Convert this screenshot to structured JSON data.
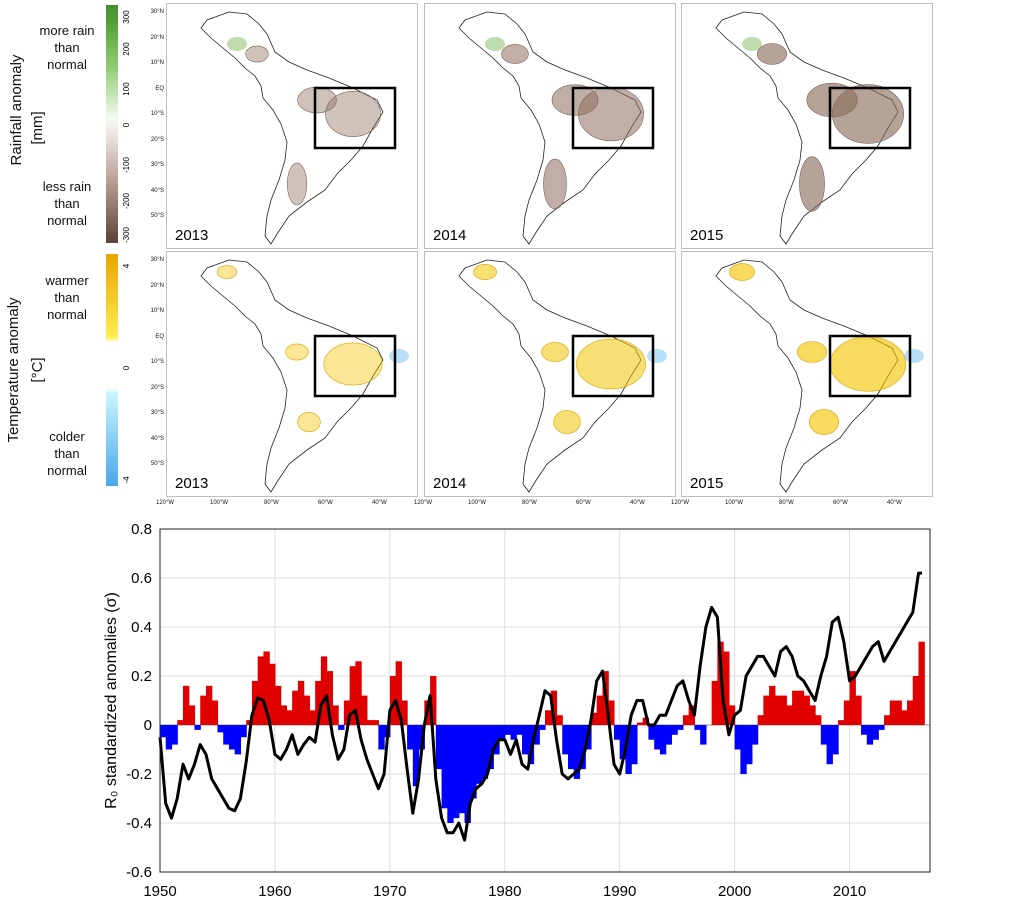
{
  "maps": {
    "rain_label": "Rainfall anomaly",
    "rain_unit": "[mm]",
    "rain_legend_top": [
      "more rain",
      "than",
      "normal"
    ],
    "rain_legend_bottom": [
      "less rain",
      "than",
      "normal"
    ],
    "rain_ticks": [
      "300",
      "200",
      "100",
      "0",
      "-100",
      "-200",
      "-300"
    ],
    "temp_label": "Temperature anomaly",
    "temp_unit": "[°C]",
    "temp_legend_top": [
      "warmer",
      "than",
      "normal"
    ],
    "temp_legend_bottom": [
      "colder",
      "than",
      "normal"
    ],
    "temp_ticks": [
      "4",
      "0",
      "-4"
    ],
    "years": [
      "2013",
      "2014",
      "2015"
    ],
    "lat_ticks": [
      "30°N",
      "20°N",
      "10°N",
      "EQ",
      "10°S",
      "20°S",
      "30°S",
      "40°S",
      "50°S"
    ],
    "lon_ticks": [
      "120°W",
      "100°W",
      "80°W",
      "60°W",
      "40°W"
    ],
    "colors": {
      "rain_wet": "#6fb24a",
      "rain_dry": "#8c6d5c",
      "temp_warm": "#f2c400",
      "temp_cold": "#5fb7f0"
    }
  },
  "chart_data": {
    "type": "bar",
    "title": "",
    "xlabel": "",
    "ylabel": "R₀ standardized anomalies (σ)",
    "xlim": [
      1950,
      2017
    ],
    "ylim": [
      -0.6,
      0.8
    ],
    "xticks": [
      1950,
      1960,
      1970,
      1980,
      1990,
      2000,
      2010
    ],
    "yticks": [
      -0.6,
      -0.4,
      -0.2,
      0,
      0.2,
      0.4,
      0.6,
      0.8
    ],
    "grid": true,
    "colors": {
      "positive": "#e00000",
      "negative": "#0000ff",
      "line": "#000000"
    },
    "series": [
      {
        "type": "bar",
        "x": [
          1950.0,
          1950.5,
          1951.0,
          1951.5,
          1952.0,
          1952.5,
          1953.0,
          1953.5,
          1954.0,
          1954.5,
          1955.0,
          1955.5,
          1956.0,
          1956.5,
          1957.0,
          1957.5,
          1958.0,
          1958.5,
          1959.0,
          1959.5,
          1960.0,
          1960.5,
          1961.0,
          1961.5,
          1962.0,
          1962.5,
          1963.0,
          1963.5,
          1964.0,
          1964.5,
          1965.0,
          1965.5,
          1966.0,
          1966.5,
          1967.0,
          1967.5,
          1968.0,
          1968.5,
          1969.0,
          1969.5,
          1970.0,
          1970.5,
          1971.0,
          1971.5,
          1972.0,
          1972.5,
          1973.0,
          1973.5,
          1974.0,
          1974.5,
          1975.0,
          1975.5,
          1976.0,
          1976.5,
          1977.0,
          1977.5,
          1978.0,
          1978.5,
          1979.0,
          1979.5,
          1980.0,
          1980.5,
          1981.0,
          1981.5,
          1982.0,
          1982.5,
          1983.0,
          1983.5,
          1984.0,
          1984.5,
          1985.0,
          1985.5,
          1986.0,
          1986.5,
          1987.0,
          1987.5,
          1988.0,
          1988.5,
          1989.0,
          1989.5,
          1990.0,
          1990.5,
          1991.0,
          1991.5,
          1992.0,
          1992.5,
          1993.0,
          1993.5,
          1994.0,
          1994.5,
          1995.0,
          1995.5,
          1996.0,
          1996.5,
          1997.0,
          1997.5,
          1998.0,
          1998.5,
          1999.0,
          1999.5,
          2000.0,
          2000.5,
          2001.0,
          2001.5,
          2002.0,
          2002.5,
          2003.0,
          2003.5,
          2004.0,
          2004.5,
          2005.0,
          2005.5,
          2006.0,
          2006.5,
          2007.0,
          2007.5,
          2008.0,
          2008.5,
          2009.0,
          2009.5,
          2010.0,
          2010.5,
          2011.0,
          2011.5,
          2012.0,
          2012.5,
          2013.0,
          2013.5,
          2014.0,
          2014.5,
          2015.0,
          2015.5,
          2016.0
        ],
        "y": [
          -0.05,
          -0.1,
          -0.08,
          0.02,
          0.16,
          0.08,
          -0.02,
          0.12,
          0.16,
          0.1,
          -0.03,
          -0.08,
          -0.1,
          -0.12,
          -0.05,
          0.02,
          0.18,
          0.28,
          0.3,
          0.25,
          0.16,
          0.08,
          0.06,
          0.14,
          0.18,
          0.12,
          0.06,
          0.18,
          0.28,
          0.22,
          0.08,
          -0.02,
          0.1,
          0.24,
          0.26,
          0.12,
          0.02,
          0.02,
          -0.1,
          -0.05,
          0.2,
          0.26,
          0.1,
          -0.1,
          -0.25,
          -0.1,
          0.1,
          0.2,
          -0.18,
          -0.34,
          -0.4,
          -0.38,
          -0.36,
          -0.4,
          -0.3,
          -0.24,
          -0.22,
          -0.18,
          -0.12,
          -0.06,
          -0.04,
          -0.06,
          -0.04,
          -0.12,
          -0.16,
          -0.08,
          -0.02,
          0.06,
          0.14,
          0.04,
          -0.12,
          -0.18,
          -0.22,
          -0.18,
          -0.1,
          0.05,
          0.12,
          0.22,
          0.1,
          -0.06,
          -0.14,
          -0.2,
          -0.16,
          0.01,
          0.03,
          -0.06,
          -0.1,
          -0.12,
          -0.08,
          -0.04,
          -0.02,
          0.04,
          0.08,
          -0.02,
          -0.08,
          0.0,
          0.18,
          0.34,
          0.3,
          0.08,
          -0.1,
          -0.2,
          -0.16,
          -0.08,
          0.04,
          0.12,
          0.16,
          0.12,
          0.12,
          0.08,
          0.14,
          0.14,
          0.12,
          0.08,
          0.04,
          -0.08,
          -0.16,
          -0.12,
          0.02,
          0.1,
          0.22,
          0.12,
          -0.04,
          -0.08,
          -0.06,
          -0.02,
          0.04,
          0.1,
          0.1,
          0.06,
          0.1,
          0.2,
          0.34
        ]
      },
      {
        "type": "line",
        "x": [
          1950.0,
          1950.5,
          1951.0,
          1951.5,
          1952.0,
          1952.5,
          1953.0,
          1953.5,
          1954.0,
          1954.5,
          1955.0,
          1955.5,
          1956.0,
          1956.5,
          1957.0,
          1957.5,
          1958.0,
          1958.5,
          1959.0,
          1959.5,
          1960.0,
          1960.5,
          1961.0,
          1961.5,
          1962.0,
          1962.5,
          1963.0,
          1963.5,
          1964.0,
          1964.5,
          1965.0,
          1965.5,
          1966.0,
          1966.5,
          1967.0,
          1967.5,
          1968.0,
          1968.5,
          1969.0,
          1969.5,
          1970.0,
          1970.5,
          1971.0,
          1971.5,
          1972.0,
          1972.5,
          1973.0,
          1973.5,
          1974.0,
          1974.5,
          1975.0,
          1975.5,
          1976.0,
          1976.5,
          1977.0,
          1977.5,
          1978.0,
          1978.5,
          1979.0,
          1979.5,
          1980.0,
          1980.5,
          1981.0,
          1981.5,
          1982.0,
          1982.5,
          1983.0,
          1983.5,
          1984.0,
          1984.5,
          1985.0,
          1985.5,
          1986.0,
          1986.5,
          1987.0,
          1987.5,
          1988.0,
          1988.5,
          1989.0,
          1989.5,
          1990.0,
          1990.5,
          1991.0,
          1991.5,
          1992.0,
          1992.5,
          1993.0,
          1993.5,
          1994.0,
          1994.5,
          1995.0,
          1995.5,
          1996.0,
          1996.5,
          1997.0,
          1997.5,
          1998.0,
          1998.5,
          1999.0,
          1999.5,
          2000.0,
          2000.5,
          2001.0,
          2001.5,
          2002.0,
          2002.5,
          2003.0,
          2003.5,
          2004.0,
          2004.5,
          2005.0,
          2005.5,
          2006.0,
          2006.5,
          2007.0,
          2007.5,
          2008.0,
          2008.5,
          2009.0,
          2009.5,
          2010.0,
          2010.5,
          2011.0,
          2011.5,
          2012.0,
          2012.5,
          2013.0,
          2013.5,
          2014.0,
          2014.5,
          2015.0,
          2015.5,
          2016.0,
          2016.3
        ],
        "y": [
          -0.05,
          -0.32,
          -0.38,
          -0.3,
          -0.16,
          -0.22,
          -0.16,
          -0.08,
          -0.12,
          -0.22,
          -0.26,
          -0.3,
          -0.34,
          -0.35,
          -0.3,
          -0.15,
          0.04,
          0.11,
          0.1,
          0.02,
          -0.12,
          -0.14,
          -0.1,
          -0.04,
          -0.12,
          -0.08,
          -0.05,
          -0.07,
          0.08,
          0.12,
          -0.04,
          -0.14,
          -0.1,
          0.04,
          0.06,
          -0.06,
          -0.14,
          -0.2,
          -0.26,
          -0.2,
          0.06,
          0.1,
          0.02,
          -0.18,
          -0.36,
          -0.22,
          0.0,
          0.12,
          -0.22,
          -0.38,
          -0.44,
          -0.44,
          -0.4,
          -0.47,
          -0.32,
          -0.26,
          -0.24,
          -0.2,
          -0.1,
          -0.06,
          -0.06,
          -0.12,
          -0.06,
          -0.16,
          -0.18,
          -0.06,
          0.04,
          0.14,
          0.12,
          -0.06,
          -0.2,
          -0.22,
          -0.2,
          -0.18,
          -0.1,
          0.02,
          0.18,
          0.22,
          0.04,
          -0.16,
          -0.2,
          -0.1,
          0.04,
          0.1,
          0.1,
          0.0,
          0.0,
          0.04,
          0.04,
          0.1,
          0.16,
          0.18,
          0.1,
          0.04,
          0.24,
          0.4,
          0.48,
          0.44,
          0.1,
          -0.04,
          0.04,
          0.06,
          0.2,
          0.24,
          0.28,
          0.28,
          0.24,
          0.2,
          0.3,
          0.32,
          0.28,
          0.2,
          0.18,
          0.14,
          0.1,
          0.2,
          0.28,
          0.42,
          0.44,
          0.34,
          0.18,
          0.2,
          0.24,
          0.28,
          0.32,
          0.34,
          0.26,
          0.3,
          0.34,
          0.38,
          0.42,
          0.46,
          0.62,
          0.62
        ]
      }
    ]
  }
}
